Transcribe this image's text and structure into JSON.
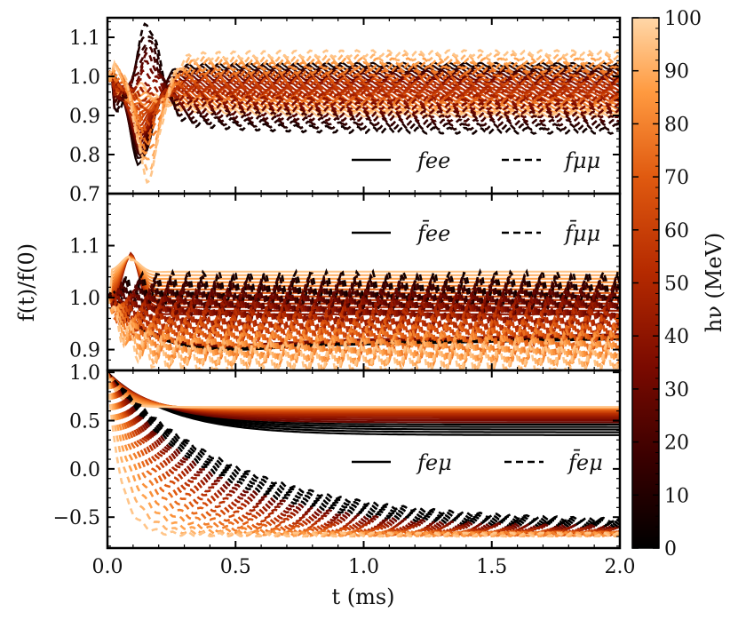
{
  "chart_data": {
    "type": "line",
    "x_label": "t (ms)",
    "y_label": "f(t)/f(0)",
    "xlim": [
      0.0,
      2.0
    ],
    "x_ticks": [
      "0.0",
      "0.5",
      "1.0",
      "1.5",
      "2.0"
    ],
    "x_tick_values": [
      0.0,
      0.5,
      1.0,
      1.5,
      2.0
    ],
    "colorbar": {
      "label": "hν (MeV)",
      "range": [
        0,
        100
      ],
      "ticks": [
        "0",
        "10",
        "20",
        "30",
        "40",
        "50",
        "60",
        "70",
        "80",
        "90",
        "100"
      ],
      "tick_values": [
        0,
        10,
        20,
        30,
        40,
        50,
        60,
        70,
        80,
        90,
        100
      ],
      "colormap": "gist_heat",
      "color_stops": [
        "#000000",
        "#3a0000",
        "#7a0a00",
        "#b52a00",
        "#e05a10",
        "#ff9a40",
        "#ffd7a8"
      ]
    },
    "panels": [
      {
        "id": "top",
        "ylim": [
          0.7,
          1.15
        ],
        "y_ticks": [
          "0.7",
          "0.8",
          "0.9",
          "1.0",
          "1.1"
        ],
        "y_tick_values": [
          0.7,
          0.8,
          0.9,
          1.0,
          1.1
        ],
        "legend": [
          {
            "label": "f_ee",
            "text": "fee",
            "style": "solid"
          },
          {
            "label": "f_μμ",
            "text": "fμμ",
            "style": "dashed"
          }
        ],
        "series": [
          {
            "name": "f_ee",
            "style": "solid",
            "start": 1.0,
            "final_low": 0.9,
            "final_high": 1.03,
            "dip_low": 0.78,
            "dip_high": 0.95,
            "dip_time": 0.12,
            "osc_amp": 0.008,
            "osc_period": 0.06
          },
          {
            "name": "f_μμ",
            "style": "dashed",
            "start": 1.0,
            "final_low": 0.86,
            "final_high": 1.06,
            "dip_low": 0.75,
            "dip_high": 1.1,
            "dip_time": 0.15,
            "osc_amp": 0.012,
            "osc_period": 0.06
          }
        ]
      },
      {
        "id": "middle",
        "ylim": [
          0.86,
          1.2
        ],
        "y_ticks": [
          "0.9",
          "1.0",
          "1.1"
        ],
        "y_tick_values": [
          0.9,
          1.0,
          1.1
        ],
        "legend": [
          {
            "label": "f̄_ee",
            "text": "f̄ee",
            "style": "solid"
          },
          {
            "label": "f̄_μμ",
            "text": "f̄μμ",
            "style": "dashed"
          }
        ],
        "series": [
          {
            "name": "f̄_ee",
            "style": "solid",
            "start": 1.0,
            "final_low": 0.92,
            "final_high": 1.05,
            "peak": 1.08,
            "dip": 0.88,
            "dip_time": 0.1,
            "osc_amp": 0.0,
            "osc_period": 0.06
          },
          {
            "name": "f̄_μμ",
            "style": "dashed",
            "start": 1.0,
            "final_low": 0.88,
            "final_high": 1.02,
            "osc_amp": 0.03,
            "osc_period": 0.06
          }
        ]
      },
      {
        "id": "bottom",
        "ylim": [
          -0.82,
          1.02
        ],
        "y_ticks": [
          "−0.5",
          "0.0",
          "0.5",
          "1.0"
        ],
        "y_tick_values": [
          -0.5,
          0.0,
          0.5,
          1.0
        ],
        "legend": [
          {
            "label": "f_eμ",
            "text": "feμ",
            "style": "solid"
          },
          {
            "label": "f̄_eμ",
            "text": "f̄eμ",
            "style": "dashed"
          }
        ],
        "series": [
          {
            "name": "f_eμ",
            "style": "solid",
            "start": 1.0,
            "final_low": 0.35,
            "final_high": 0.64,
            "decay_tau_low": 0.04,
            "decay_tau_high": 0.25
          },
          {
            "name": "f̄_eμ",
            "style": "dashed",
            "start": 1.0,
            "final_low": -0.68,
            "final_high": -0.48,
            "decay_tau_low": 0.05,
            "decay_tau_high": 0.5,
            "osc_amp": 0.02,
            "osc_period": 0.06
          }
        ]
      }
    ]
  }
}
